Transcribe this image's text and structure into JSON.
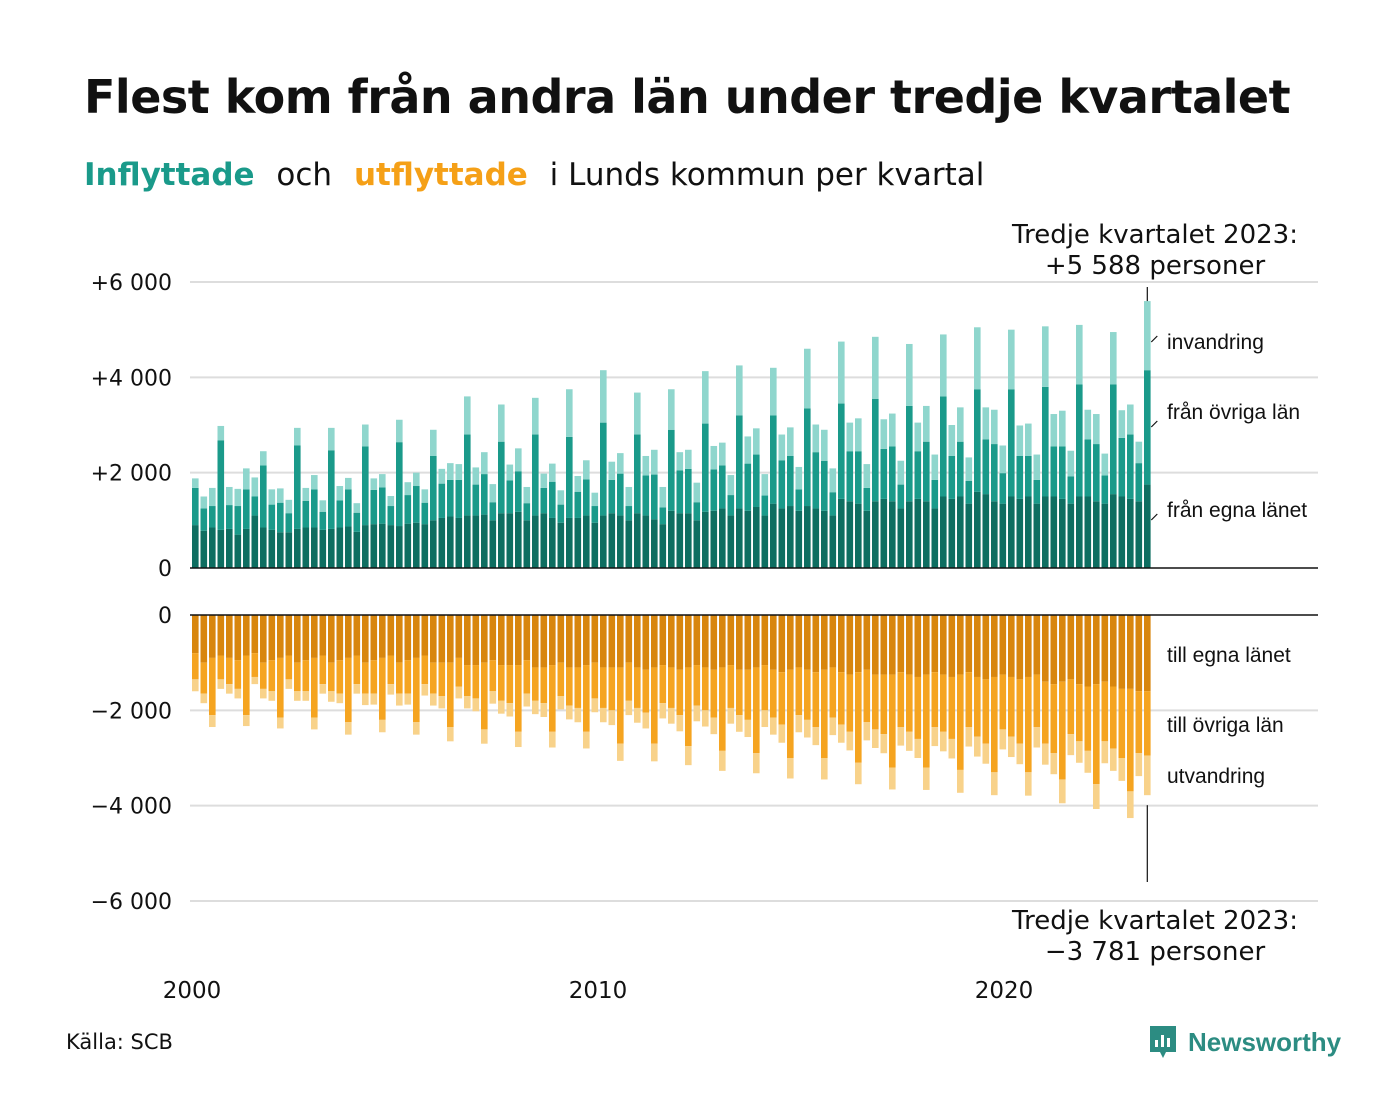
{
  "title": "Flest kom från andra län under tredje kvartalet",
  "subtitle": {
    "inflyttade": "Inflyttade",
    "och": "och",
    "utflyttade": "utflyttade",
    "rest": "i Lunds kommun per kvartal"
  },
  "source": "Källa: SCB",
  "logo": {
    "text": "Newsworthy",
    "icon": "newsworthy-logo-icon"
  },
  "colors": {
    "in_own": "#0e6e61",
    "in_other": "#1a9a8a",
    "in_immig": "#8fd6cd",
    "out_own": "#d8860d",
    "out_other": "#f5a420",
    "out_emig": "#f8d28a",
    "grid": "#dddddd",
    "axis": "#111111"
  },
  "chart_data": {
    "type": "bar",
    "stacked": true,
    "period": "quarterly",
    "x_ticks": [
      "2000",
      "2010",
      "2020"
    ],
    "y_ticks_top": [
      "+6 000",
      "+4 000",
      "+2 000",
      "0"
    ],
    "y_ticks_bottom": [
      "0",
      "−2 000",
      "−4 000",
      "−6 000"
    ],
    "ylim_top": [
      0,
      6000
    ],
    "ylim_bottom": [
      -6000,
      0
    ],
    "legend_labels_top": [
      "invandring",
      "från övriga län",
      "från egna länet"
    ],
    "legend_labels_bottom": [
      "till egna länet",
      "till övriga län",
      "utvandring"
    ],
    "annotation_top": [
      "Tredje kvartalet 2023:",
      "+5 588 personer"
    ],
    "annotation_bottom": [
      "Tredje kvartalet 2023:",
      "−3 781 personer"
    ],
    "series_in": [
      {
        "name": "från egna länet",
        "values": [
          900,
          780,
          850,
          800,
          820,
          700,
          820,
          1100,
          850,
          800,
          750,
          750,
          820,
          850,
          850,
          800,
          820,
          850,
          870,
          760,
          900,
          920,
          930,
          900,
          880,
          930,
          950,
          920,
          1000,
          1050,
          1080,
          1050,
          1100,
          1100,
          1120,
          1000,
          1150,
          1150,
          1180,
          1000,
          1100,
          1150,
          1050,
          950,
          1050,
          1050,
          1100,
          950,
          1100,
          1150,
          1100,
          1000,
          1150,
          1100,
          1020,
          920,
          1200,
          1150,
          1150,
          1000,
          1180,
          1200,
          1250,
          1100,
          1250,
          1200,
          1280,
          1100,
          1350,
          1250,
          1300,
          1200,
          1300,
          1250,
          1200,
          1100,
          1450,
          1400,
          1350,
          1200,
          1400,
          1450,
          1400,
          1250,
          1400,
          1450,
          1400,
          1250,
          1500,
          1450,
          1500,
          1350,
          1600,
          1550,
          1400,
          1350,
          1500,
          1450,
          1500,
          1350,
          1500,
          1500,
          1450,
          1350,
          1500,
          1500,
          1400,
          1350,
          1550,
          1500,
          1450,
          1400,
          1750
        ]
      },
      {
        "name": "från övriga län",
        "values": [
          780,
          470,
          450,
          1880,
          500,
          600,
          830,
          400,
          1300,
          530,
          620,
          400,
          1750,
          560,
          800,
          380,
          1650,
          570,
          780,
          400,
          1650,
          720,
          760,
          400,
          1760,
          600,
          770,
          450,
          1350,
          720,
          770,
          800,
          1700,
          650,
          850,
          380,
          1500,
          690,
          850,
          360,
          1700,
          530,
          760,
          380,
          1700,
          550,
          760,
          350,
          1950,
          700,
          880,
          300,
          1650,
          840,
          940,
          350,
          1700,
          900,
          930,
          380,
          1850,
          870,
          900,
          430,
          1950,
          990,
          1100,
          420,
          1850,
          1010,
          1050,
          450,
          2050,
          1180,
          1050,
          490,
          2000,
          1050,
          1100,
          480,
          2150,
          1050,
          1150,
          500,
          2000,
          1000,
          1250,
          600,
          2100,
          900,
          1150,
          480,
          2150,
          1150,
          1200,
          640,
          2250,
          900,
          850,
          500,
          2300,
          1050,
          1100,
          570,
          2350,
          1200,
          1200,
          590,
          2300,
          1230,
          1350,
          800,
          2400
        ]
      },
      {
        "name": "invandring",
        "values": [
          200,
          250,
          380,
          300,
          380,
          360,
          440,
          400,
          300,
          320,
          300,
          280,
          370,
          270,
          300,
          240,
          470,
          300,
          240,
          200,
          460,
          240,
          280,
          210,
          470,
          270,
          280,
          280,
          550,
          310,
          350,
          330,
          800,
          360,
          460,
          380,
          780,
          330,
          480,
          340,
          770,
          300,
          380,
          300,
          1000,
          330,
          400,
          280,
          1100,
          380,
          430,
          400,
          880,
          410,
          520,
          430,
          850,
          380,
          400,
          410,
          1100,
          490,
          480,
          420,
          1050,
          570,
          550,
          450,
          1000,
          540,
          600,
          470,
          1250,
          580,
          650,
          500,
          1300,
          600,
          690,
          500,
          1300,
          620,
          690,
          500,
          1300,
          600,
          750,
          530,
          1300,
          650,
          720,
          490,
          1300,
          670,
          720,
          580,
          1250,
          640,
          680,
          530,
          1270,
          680,
          750,
          540,
          1250,
          620,
          630,
          460,
          1100,
          580,
          630,
          450,
          1450
        ]
      }
    ],
    "series_out": [
      {
        "name": "till egna länet",
        "values": [
          800,
          1000,
          900,
          850,
          900,
          950,
          850,
          800,
          1000,
          950,
          900,
          850,
          1000,
          950,
          900,
          850,
          1000,
          950,
          900,
          850,
          1000,
          950,
          900,
          850,
          1000,
          950,
          900,
          850,
          1000,
          1000,
          1000,
          900,
          1050,
          1050,
          1000,
          950,
          1050,
          1050,
          1050,
          950,
          1100,
          1100,
          1050,
          1000,
          1100,
          1100,
          1050,
          1000,
          1100,
          1100,
          1100,
          1000,
          1100,
          1150,
          1100,
          1050,
          1100,
          1150,
          1100,
          1050,
          1100,
          1150,
          1100,
          1050,
          1150,
          1150,
          1100,
          1050,
          1150,
          1200,
          1150,
          1100,
          1150,
          1200,
          1150,
          1100,
          1200,
          1250,
          1200,
          1150,
          1250,
          1250,
          1250,
          1200,
          1250,
          1300,
          1250,
          1200,
          1250,
          1300,
          1250,
          1200,
          1300,
          1350,
          1300,
          1250,
          1300,
          1350,
          1300,
          1250,
          1400,
          1450,
          1400,
          1350,
          1450,
          1500,
          1450,
          1400,
          1500,
          1550,
          1550,
          1600,
          1600
        ]
      },
      {
        "name": "till övriga län",
        "values": [
          550,
          650,
          1200,
          500,
          550,
          600,
          1250,
          500,
          550,
          650,
          1250,
          500,
          600,
          650,
          1250,
          600,
          600,
          700,
          1350,
          600,
          650,
          700,
          1300,
          600,
          650,
          700,
          1350,
          600,
          650,
          700,
          1350,
          600,
          650,
          700,
          1400,
          650,
          750,
          800,
          1400,
          700,
          700,
          750,
          1400,
          700,
          800,
          850,
          1400,
          750,
          850,
          900,
          1600,
          800,
          850,
          900,
          1600,
          800,
          850,
          950,
          1650,
          850,
          900,
          1000,
          1750,
          900,
          950,
          1050,
          1800,
          950,
          1000,
          1100,
          1850,
          1000,
          1050,
          1150,
          1850,
          1050,
          1100,
          1200,
          1900,
          1100,
          1150,
          1250,
          1950,
          1150,
          1200,
          1300,
          1950,
          1150,
          1200,
          1300,
          2000,
          1150,
          1250,
          1350,
          2000,
          1150,
          1250,
          1350,
          2000,
          1100,
          1300,
          1450,
          2050,
          1150,
          1200,
          1350,
          2100,
          1250,
          1300,
          1450,
          2150,
          1300,
          1350
        ]
      },
      {
        "name": "utvandring",
        "values": [
          250,
          200,
          250,
          200,
          200,
          200,
          230,
          150,
          200,
          200,
          230,
          200,
          200,
          200,
          250,
          200,
          220,
          200,
          260,
          200,
          240,
          230,
          260,
          220,
          250,
          230,
          260,
          240,
          250,
          260,
          300,
          250,
          260,
          270,
          300,
          260,
          270,
          280,
          320,
          270,
          280,
          290,
          330,
          280,
          290,
          300,
          350,
          290,
          300,
          310,
          360,
          300,
          310,
          330,
          370,
          320,
          330,
          340,
          400,
          330,
          340,
          350,
          420,
          330,
          350,
          360,
          420,
          350,
          360,
          380,
          430,
          360,
          370,
          380,
          450,
          370,
          380,
          390,
          450,
          380,
          390,
          400,
          460,
          390,
          400,
          400,
          470,
          400,
          410,
          410,
          480,
          410,
          420,
          420,
          480,
          420,
          430,
          430,
          490,
          430,
          440,
          440,
          500,
          440,
          450,
          460,
          520,
          460,
          470,
          480,
          560,
          480,
          830
        ]
      }
    ]
  }
}
